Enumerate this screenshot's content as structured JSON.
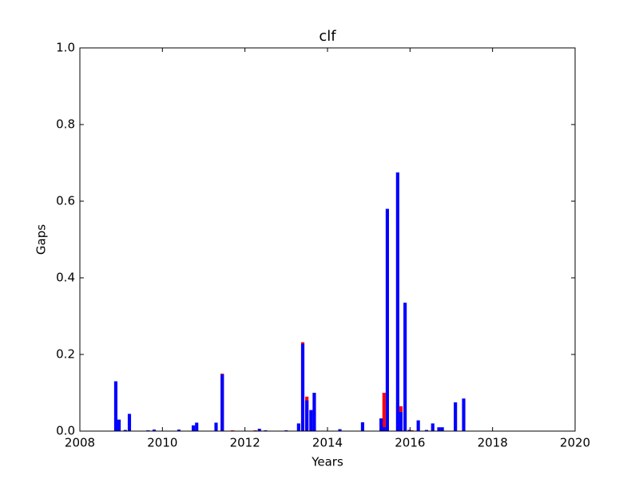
{
  "chart_data": {
    "type": "bar",
    "title": "clf",
    "xlabel": "Years",
    "ylabel": "Gaps",
    "x": [
      2008.87,
      2008.95,
      2009.1,
      2009.2,
      2009.65,
      2009.8,
      2010.4,
      2010.75,
      2010.83,
      2011.3,
      2011.45,
      2011.7,
      2012.25,
      2012.35,
      2012.5,
      2013.0,
      2013.3,
      2013.4,
      2013.5,
      2013.6,
      2013.68,
      2014.3,
      2014.85,
      2015.3,
      2015.37,
      2015.45,
      2015.7,
      2015.78,
      2015.88,
      2015.98,
      2016.05,
      2016.2,
      2016.4,
      2016.55,
      2016.7,
      2016.78,
      2017.1,
      2017.3
    ],
    "series": [
      {
        "color": "#ff0000",
        "values": [
          null,
          null,
          null,
          null,
          null,
          null,
          null,
          null,
          null,
          null,
          0.15,
          0.002,
          0.002,
          null,
          null,
          null,
          null,
          0.232,
          0.09,
          null,
          0.1,
          null,
          null,
          0.033,
          0.1,
          null,
          null,
          0.065,
          null,
          null,
          0.002,
          null,
          null,
          null,
          null,
          null,
          null,
          null
        ]
      },
      {
        "color": "#0000ff",
        "values": [
          0.13,
          0.03,
          0.003,
          0.045,
          0.002,
          0.004,
          0.004,
          0.015,
          0.022,
          0.022,
          0.148,
          null,
          null,
          0.006,
          0.002,
          0.002,
          0.02,
          0.228,
          0.08,
          0.055,
          0.1,
          0.005,
          0.023,
          0.033,
          0.01,
          0.58,
          0.675,
          0.05,
          0.335,
          0.003,
          null,
          0.028,
          0.003,
          0.02,
          0.01,
          0.01,
          0.075,
          0.085
        ]
      }
    ],
    "xlim": [
      2008,
      2020
    ],
    "xticks": [
      2008,
      2010,
      2012,
      2014,
      2016,
      2018,
      2020
    ],
    "ylim": [
      0,
      1
    ],
    "yticks": [
      {
        "value": 0,
        "label": "0.0"
      },
      {
        "value": 0.2,
        "label": "0.2"
      },
      {
        "value": 0.4,
        "label": "0.4"
      },
      {
        "value": 0.6,
        "label": "0.6"
      },
      {
        "value": 0.8,
        "label": "0.8"
      },
      {
        "value": 1,
        "label": "1.0"
      }
    ]
  }
}
